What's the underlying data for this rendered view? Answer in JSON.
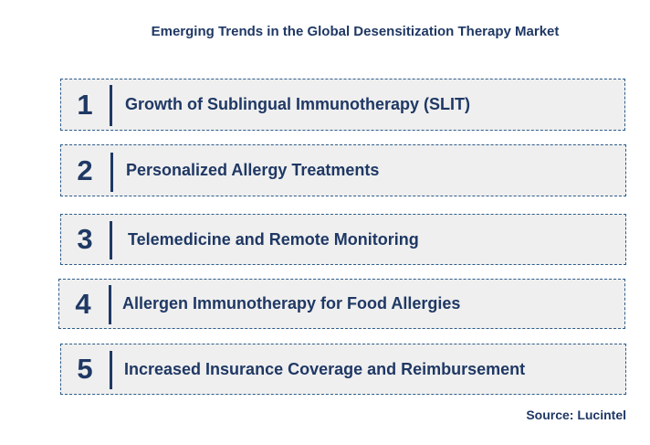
{
  "title": "Emerging Trends in the Global Desensitization Therapy Market",
  "trends": [
    {
      "number": "1",
      "label": "Growth of Sublingual Immunotherapy (SLIT)"
    },
    {
      "number": "2",
      "label": "Personalized Allergy Treatments"
    },
    {
      "number": "3",
      "label": "Telemedicine and Remote Monitoring"
    },
    {
      "number": "4",
      "label": "Allergen Immunotherapy for Food Allergies"
    },
    {
      "number": "5",
      "label": "Increased Insurance Coverage and Reimbursement"
    }
  ],
  "source": "Source: Lucintel",
  "colors": {
    "text": "#1f3864",
    "box_background": "#efefef",
    "box_border": "#2e5c8a"
  }
}
